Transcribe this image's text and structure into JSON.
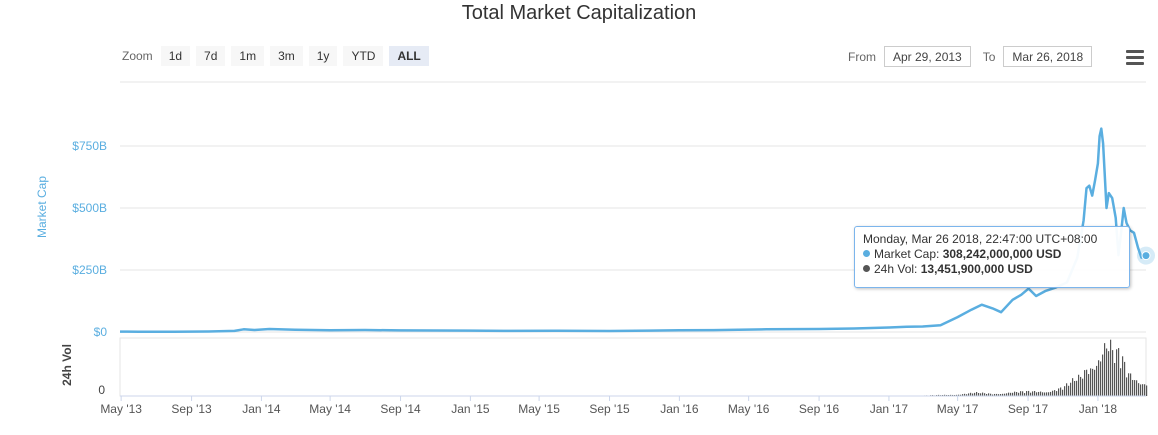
{
  "header": {
    "title": "Total Market Capitalization"
  },
  "zoom": {
    "label": "Zoom",
    "buttons": [
      "1d",
      "7d",
      "1m",
      "3m",
      "1y",
      "YTD",
      "ALL"
    ],
    "active": "ALL"
  },
  "range": {
    "from_label": "From",
    "from_value": "Apr 29, 2013",
    "to_label": "To",
    "to_value": "Mar 26, 2018"
  },
  "menu": {
    "icon": "hamburger-menu-icon"
  },
  "tooltip": {
    "date": "Monday, Mar 26 2018, 22:47:00 UTC+08:00",
    "market_cap_label": "Market Cap:",
    "market_cap_value": "308,242,000,000 USD",
    "volume_label": "24h Vol:",
    "volume_value": "13,451,900,000 USD"
  },
  "colors": {
    "market_cap": "#5aaee0",
    "volume": "#555555",
    "gridline": "#e6e6e6",
    "axis_text": "#5aaee0"
  },
  "chart_data": {
    "type": "area",
    "title": "Total Market Capitalization",
    "ylabel": "Market Cap",
    "ylabel_secondary": "24h Vol",
    "ylim": [
      0,
      1000
    ],
    "y_unit": "billion USD",
    "y_ticks": [
      "$0",
      "$250B",
      "$500B",
      "$750B"
    ],
    "volume_ticks": [
      "0"
    ],
    "x_ticks": [
      "May '13",
      "Sep '13",
      "Jan '14",
      "May '14",
      "Sep '14",
      "Jan '15",
      "May '15",
      "Sep '15",
      "Jan '16",
      "May '16",
      "Sep '16",
      "Jan '17",
      "May '17",
      "Sep '17",
      "Jan '18"
    ],
    "xlim": [
      "2013-04-29",
      "2018-03-26"
    ],
    "grid": true,
    "legend": "none",
    "series": [
      {
        "name": "Market Cap",
        "x": [
          "2013-04-29",
          "2013-06-01",
          "2013-08-01",
          "2013-10-01",
          "2013-11-15",
          "2013-12-01",
          "2013-12-20",
          "2014-01-15",
          "2014-03-01",
          "2014-05-01",
          "2014-07-01",
          "2014-09-01",
          "2014-11-01",
          "2015-01-01",
          "2015-03-01",
          "2015-06-01",
          "2015-09-01",
          "2015-11-10",
          "2016-01-01",
          "2016-03-01",
          "2016-06-01",
          "2016-09-01",
          "2016-11-01",
          "2017-01-01",
          "2017-02-01",
          "2017-03-01",
          "2017-04-01",
          "2017-05-01",
          "2017-05-25",
          "2017-06-12",
          "2017-07-01",
          "2017-07-16",
          "2017-08-05",
          "2017-08-20",
          "2017-09-02",
          "2017-09-15",
          "2017-10-01",
          "2017-10-20",
          "2017-11-08",
          "2017-11-26",
          "2017-12-07",
          "2017-12-12",
          "2017-12-17",
          "2017-12-22",
          "2017-12-27",
          "2018-01-01",
          "2018-01-04",
          "2018-01-07",
          "2018-01-10",
          "2018-01-16",
          "2018-01-20",
          "2018-01-26",
          "2018-02-01",
          "2018-02-06",
          "2018-02-10",
          "2018-02-15",
          "2018-02-20",
          "2018-02-26",
          "2018-03-05",
          "2018-03-12",
          "2018-03-18",
          "2018-03-26"
        ],
        "values": [
          1.5,
          1.3,
          1.4,
          2.2,
          4.5,
          11,
          8,
          12,
          9,
          7,
          8,
          6.5,
          6,
          5.5,
          4.5,
          4.8,
          4.2,
          5.5,
          7,
          7.5,
          11,
          12,
          14,
          18,
          21,
          22,
          27,
          60,
          90,
          110,
          95,
          80,
          130,
          150,
          175,
          145,
          165,
          180,
          200,
          300,
          450,
          580,
          590,
          550,
          610,
          680,
          790,
          820,
          760,
          500,
          560,
          540,
          460,
          310,
          390,
          500,
          440,
          410,
          400,
          340,
          300,
          308
        ]
      },
      {
        "name": "24h Vol",
        "x": [
          "2013-04-29",
          "2014-01-01",
          "2015-01-01",
          "2016-01-01",
          "2017-01-01",
          "2017-03-01",
          "2017-05-01",
          "2017-06-01",
          "2017-07-01",
          "2017-08-01",
          "2017-09-01",
          "2017-10-01",
          "2017-11-01",
          "2017-12-01",
          "2017-12-15",
          "2018-01-01",
          "2018-01-08",
          "2018-01-16",
          "2018-02-01",
          "2018-02-06",
          "2018-02-20",
          "2018-03-05",
          "2018-03-26"
        ],
        "values": [
          0.02,
          0.05,
          0.02,
          0.03,
          0.2,
          0.4,
          1.5,
          3,
          2,
          3.5,
          4,
          4.5,
          8,
          18,
          30,
          40,
          45,
          50,
          35,
          40,
          22,
          18,
          13.45
        ]
      }
    ]
  }
}
